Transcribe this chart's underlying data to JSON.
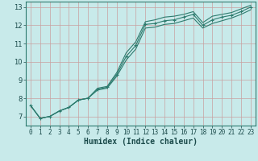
{
  "xlabel": "Humidex (Indice chaleur)",
  "xlim": [
    -0.5,
    23.5
  ],
  "ylim": [
    6.5,
    13.3
  ],
  "xticks": [
    0,
    1,
    2,
    3,
    4,
    5,
    6,
    7,
    8,
    9,
    10,
    11,
    12,
    13,
    14,
    15,
    16,
    17,
    18,
    19,
    20,
    21,
    22,
    23
  ],
  "yticks": [
    7,
    8,
    9,
    10,
    11,
    12,
    13
  ],
  "bg_color": "#c8eaea",
  "grid_color": "#c8a0a0",
  "line_color": "#2d7b6e",
  "x": [
    0,
    1,
    2,
    3,
    4,
    5,
    6,
    7,
    8,
    9,
    10,
    11,
    12,
    13,
    14,
    15,
    16,
    17,
    18,
    19,
    20,
    21,
    22,
    23
  ],
  "y_main": [
    7.6,
    6.9,
    7.0,
    7.3,
    7.5,
    7.9,
    8.0,
    8.5,
    8.6,
    9.3,
    10.3,
    10.9,
    12.05,
    12.1,
    12.25,
    12.3,
    12.45,
    12.6,
    12.0,
    12.3,
    12.45,
    12.55,
    12.75,
    13.0
  ],
  "y_low": [
    7.6,
    6.9,
    7.0,
    7.3,
    7.5,
    7.9,
    8.0,
    8.45,
    8.55,
    9.2,
    10.1,
    10.7,
    11.85,
    11.9,
    12.05,
    12.1,
    12.25,
    12.4,
    11.85,
    12.1,
    12.25,
    12.4,
    12.6,
    12.85
  ],
  "y_high": [
    7.6,
    6.9,
    7.0,
    7.3,
    7.5,
    7.9,
    8.0,
    8.55,
    8.65,
    9.4,
    10.5,
    11.1,
    12.2,
    12.3,
    12.45,
    12.5,
    12.6,
    12.75,
    12.15,
    12.5,
    12.6,
    12.7,
    12.9,
    13.1
  ]
}
